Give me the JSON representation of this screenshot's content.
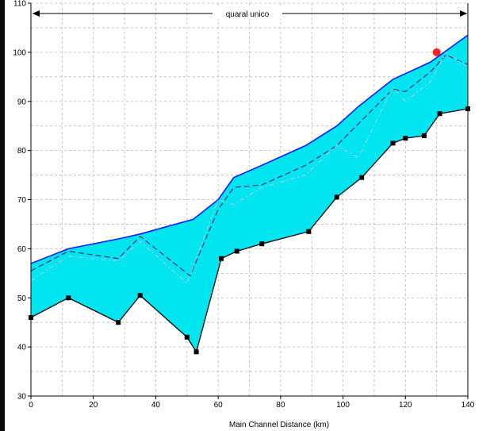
{
  "chart_data": {
    "type": "area",
    "xlabel": "Main Channel Distance (km)",
    "ylabel": "",
    "xlim": [
      0,
      140
    ],
    "ylim": [
      30,
      110
    ],
    "x_ticks": [
      "0",
      "20",
      "40",
      "60",
      "80",
      "100",
      "120",
      "140"
    ],
    "y_ticks": [
      "30",
      "40",
      "50",
      "60",
      "70",
      "80",
      "90",
      "100",
      "110"
    ],
    "grid": true,
    "reach_label": "quaral unico",
    "colors": {
      "fill": "#00e5f0",
      "bed": "#000000",
      "top": "#1a1aff",
      "dash_navy": "#1a2a80",
      "dash_light": "#8fd4e6",
      "marker": "#ff2020"
    },
    "series": [
      {
        "values": [
          [
            0,
            57
          ],
          [
            12,
            60
          ],
          [
            28,
            62
          ],
          [
            35,
            63
          ],
          [
            52,
            66
          ],
          [
            60,
            70
          ],
          [
            65,
            74.5
          ],
          [
            74,
            77
          ],
          [
            88,
            81
          ],
          [
            98,
            85
          ],
          [
            105,
            89
          ],
          [
            116,
            94.5
          ],
          [
            128,
            98
          ],
          [
            140,
            103.5
          ]
        ]
      },
      {
        "values": [
          [
            0,
            55.5
          ],
          [
            12,
            59.5
          ],
          [
            28,
            58
          ],
          [
            35,
            62.5
          ],
          [
            51,
            54.5
          ],
          [
            60,
            68
          ],
          [
            65,
            72.5
          ],
          [
            74,
            73
          ],
          [
            88,
            77
          ],
          [
            98,
            81
          ],
          [
            105,
            85.5
          ],
          [
            116,
            92.5
          ],
          [
            120,
            92
          ],
          [
            128,
            96
          ],
          [
            133,
            99.5
          ],
          [
            140,
            97.5
          ]
        ]
      },
      {
        "values": [
          [
            0,
            53.5
          ],
          [
            12,
            58.5
          ],
          [
            28,
            57.5
          ],
          [
            35,
            61.5
          ],
          [
            50,
            53
          ],
          [
            60,
            70
          ],
          [
            65,
            69
          ],
          [
            74,
            72.5
          ],
          [
            88,
            75
          ],
          [
            98,
            81
          ],
          [
            105,
            78.5
          ],
          [
            116,
            93
          ],
          [
            120,
            90
          ],
          [
            128,
            94
          ],
          [
            133,
            100
          ],
          [
            140,
            97
          ]
        ]
      },
      {
        "values": [
          [
            0,
            46
          ],
          [
            12,
            50
          ],
          [
            28,
            45
          ],
          [
            35,
            50.5
          ],
          [
            50,
            42
          ],
          [
            53,
            39
          ],
          [
            61,
            58
          ],
          [
            66,
            59.5
          ],
          [
            74,
            61
          ],
          [
            89,
            63.5
          ],
          [
            98,
            70.5
          ],
          [
            106,
            74.5
          ],
          [
            116,
            81.5
          ],
          [
            120,
            82.5
          ],
          [
            126,
            83
          ],
          [
            131,
            87.5
          ],
          [
            140,
            88.5
          ]
        ]
      }
    ],
    "marker_points": [
      [
        130,
        100
      ]
    ]
  }
}
